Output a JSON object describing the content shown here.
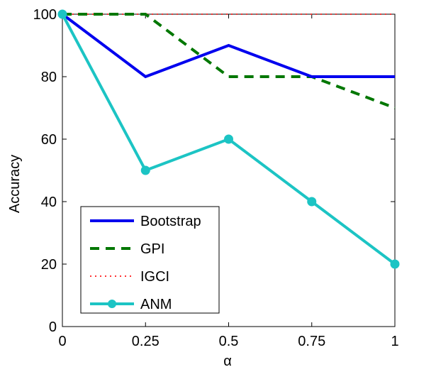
{
  "chart_data": {
    "type": "line",
    "title": "",
    "xlabel": "α",
    "ylabel": "Accuracy",
    "x": [
      0,
      0.25,
      0.5,
      0.75,
      1
    ],
    "xticks": [
      "0",
      "0.25",
      "0.5",
      "0.75",
      "1"
    ],
    "yticks": [
      "0",
      "20",
      "40",
      "60",
      "80",
      "100"
    ],
    "xlim": [
      0,
      1
    ],
    "ylim": [
      0,
      100
    ],
    "grid": false,
    "legend_position": "bottom-left",
    "series": [
      {
        "name": "Bootstrap",
        "values": [
          100,
          80,
          90,
          80,
          80
        ],
        "color": "#0000ee",
        "style": "solid",
        "markers": false
      },
      {
        "name": "GPI",
        "values": [
          100,
          100,
          80,
          80,
          70
        ],
        "color": "#007700",
        "style": "dashed",
        "markers": false
      },
      {
        "name": "IGCI",
        "values": [
          100,
          100,
          100,
          100,
          100
        ],
        "color": "#ff3333",
        "style": "dotted",
        "markers": false
      },
      {
        "name": "ANM",
        "values": [
          100,
          50,
          60,
          40,
          20
        ],
        "color": "#1cc4c4",
        "style": "solid",
        "markers": true
      }
    ]
  }
}
